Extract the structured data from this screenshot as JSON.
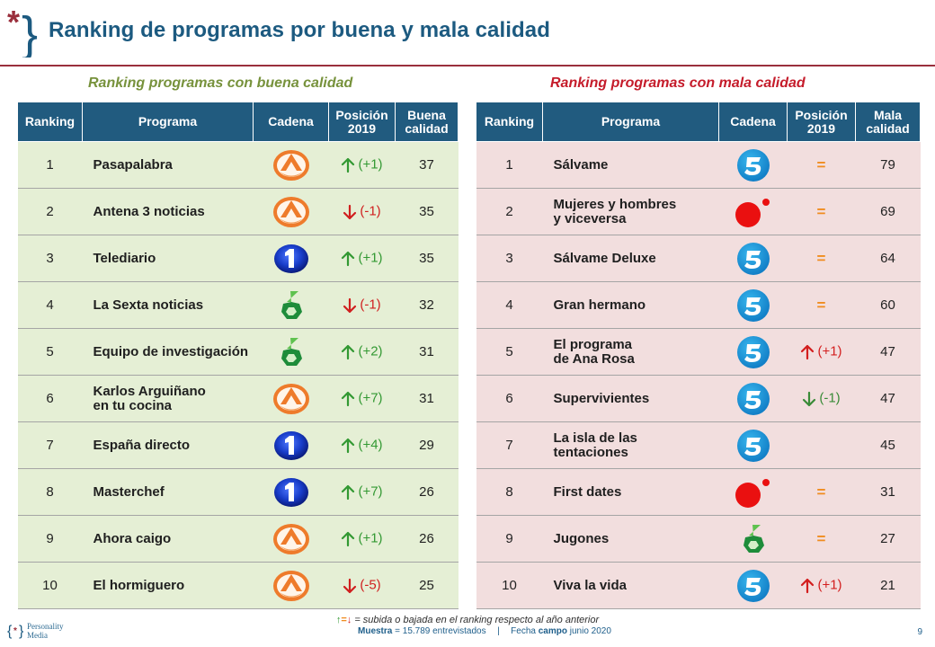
{
  "header": {
    "title": "Ranking de programas por buena y mala calidad"
  },
  "good_section": {
    "title": "Ranking programas con buena calidad",
    "columns": [
      "Ranking",
      "Programa",
      "Cadena",
      "Posición\n2019",
      "Buena\ncalidad"
    ],
    "rows": [
      {
        "rank": "1",
        "program": "Pasapalabra",
        "channel": "antena3",
        "trend": "up",
        "position": "(+1)",
        "score": "37"
      },
      {
        "rank": "2",
        "program": "Antena 3 noticias",
        "channel": "antena3",
        "trend": "down",
        "position": "(-1)",
        "score": "35"
      },
      {
        "rank": "3",
        "program": "Telediario",
        "channel": "la1",
        "trend": "up",
        "position": "(+1)",
        "score": "35"
      },
      {
        "rank": "4",
        "program": "La Sexta noticias",
        "channel": "lasexta",
        "trend": "down",
        "position": "(-1)",
        "score": "32"
      },
      {
        "rank": "5",
        "program": "Equipo de investigación",
        "channel": "lasexta",
        "trend": "up",
        "position": "(+2)",
        "score": "31"
      },
      {
        "rank": "6",
        "program": "Karlos Arguiñano\nen tu cocina",
        "channel": "antena3",
        "trend": "up",
        "position": "(+7)",
        "score": "31"
      },
      {
        "rank": "7",
        "program": "España directo",
        "channel": "la1",
        "trend": "up",
        "position": "(+4)",
        "score": "29"
      },
      {
        "rank": "8",
        "program": "Masterchef",
        "channel": "la1",
        "trend": "up",
        "position": "(+7)",
        "score": "26"
      },
      {
        "rank": "9",
        "program": "Ahora caigo",
        "channel": "antena3",
        "trend": "up",
        "position": "(+1)",
        "score": "26"
      },
      {
        "rank": "10",
        "program": "El hormiguero",
        "channel": "antena3",
        "trend": "down",
        "position": "(-5)",
        "score": "25"
      }
    ]
  },
  "bad_section": {
    "title": "Ranking programas con mala calidad",
    "columns": [
      "Ranking",
      "Programa",
      "Cadena",
      "Posición\n2019",
      "Mala\ncalidad"
    ],
    "rows": [
      {
        "rank": "1",
        "program": "Sálvame",
        "channel": "telecinco",
        "trend": "equal",
        "position": "=",
        "score": "79"
      },
      {
        "rank": "2",
        "program": "Mujeres y hombres\ny viceversa",
        "channel": "cuatro",
        "trend": "equal",
        "position": "=",
        "score": "69"
      },
      {
        "rank": "3",
        "program": "Sálvame Deluxe",
        "channel": "telecinco",
        "trend": "equal",
        "position": "=",
        "score": "64"
      },
      {
        "rank": "4",
        "program": "Gran hermano",
        "channel": "telecinco",
        "trend": "equal",
        "position": "=",
        "score": "60"
      },
      {
        "rank": "5",
        "program": "El programa\nde Ana Rosa",
        "channel": "telecinco",
        "trend": "up",
        "position": "(+1)",
        "score": "47"
      },
      {
        "rank": "6",
        "program": "Supervivientes",
        "channel": "telecinco",
        "trend": "down",
        "position": "(-1)",
        "score": "47"
      },
      {
        "rank": "7",
        "program": "La isla de las\ntentaciones",
        "channel": "telecinco",
        "trend": "none",
        "position": "",
        "score": "45"
      },
      {
        "rank": "8",
        "program": "First dates",
        "channel": "cuatro",
        "trend": "equal",
        "position": "=",
        "score": "31"
      },
      {
        "rank": "9",
        "program": "Jugones",
        "channel": "lasexta",
        "trend": "equal",
        "position": "=",
        "score": "27"
      },
      {
        "rank": "10",
        "program": "Viva la vida",
        "channel": "telecinco",
        "trend": "up",
        "position": "(+1)",
        "score": "21"
      }
    ]
  },
  "legend": {
    "up": "↑",
    "equal": "=",
    "down": "↓",
    "text": " = subida o bajada en el ranking respecto al año anterior"
  },
  "footer": {
    "brand_top": "Personality",
    "brand_bottom": "Media",
    "sample_label": "Muestra",
    "sample_value": " = 15.789 entrevistados",
    "separator": "|",
    "fieldwork_label": "Fecha ",
    "fieldwork_bold": "campo",
    "fieldwork_value": " junio 2020",
    "page_number": "9"
  },
  "icons": {
    "header_mark": "asterisk-brace-logo-icon",
    "antena3": "antena3-logo-icon",
    "la1": "la1-logo-icon",
    "lasexta": "lasexta-logo-icon",
    "telecinco": "telecinco-logo-icon",
    "cuatro": "cuatro-logo-icon",
    "up": "arrow-up-icon",
    "down": "arrow-down-icon",
    "equal": "equal-icon"
  },
  "colors": {
    "primary": "#1c5a80",
    "header_rule": "#9a2f3c",
    "good_title": "#77923c",
    "bad_title": "#c51c2b",
    "good_row": "#e5efd5",
    "bad_row": "#f2dede",
    "table_header": "#215b7f",
    "up": "#339933",
    "down": "#d01f1f",
    "equal": "#f08c1f"
  }
}
